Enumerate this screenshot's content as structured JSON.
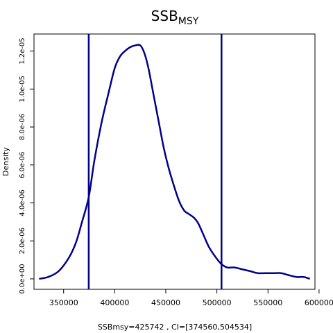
{
  "chart_data": {
    "type": "line",
    "title_main": "SSB",
    "title_sub": "MSY",
    "xlabel": "SSBmsy=425742 , CI=[374560,504534]",
    "ylabel": "Density",
    "xlim": [
      321000,
      596000
    ],
    "ylim": [
      -5.5e-07,
      1.29e-05
    ],
    "x_ticks": [
      350000,
      400000,
      450000,
      500000,
      550000,
      600000
    ],
    "x_tick_labels": [
      "350000",
      "400000",
      "450000",
      "500000",
      "550000",
      "600000"
    ],
    "y_ticks": [
      0,
      2e-06,
      4e-06,
      6e-06,
      8e-06,
      1e-05,
      1.2e-05
    ],
    "y_tick_labels": [
      "0.0e+00",
      "2.0e-06",
      "4.0e-06",
      "6.0e-06",
      "8.0e-06",
      "1.0e-05",
      "1.2e-05"
    ],
    "ci_lines": [
      374560,
      504534
    ],
    "line_color": "#00008b",
    "series": [
      {
        "x": [
          326000,
          335000,
          345000,
          355000,
          362000,
          368000,
          374560,
          380000,
          387000,
          394000,
          400000,
          405000,
          410000,
          415000,
          420000,
          425000,
          429000,
          433000,
          438000,
          443000,
          448000,
          453000,
          458000,
          463000,
          468000,
          473000,
          478000,
          482000,
          487000,
          492000,
          498000,
          504000,
          510000,
          517000,
          525000,
          533000,
          540000,
          548000,
          556000,
          563000,
          570000,
          578000,
          585000,
          591000
        ],
        "y": [
          0.0,
          1e-07,
          4e-07,
          1.1e-06,
          1.9e-06,
          3e-06,
          4.3e-06,
          6.2e-06,
          8.2e-06,
          9.8e-06,
          1.11e-05,
          1.17e-05,
          1.2e-05,
          1.22e-05,
          1.23e-05,
          1.23e-05,
          1.19e-05,
          1.11e-05,
          9.7e-06,
          8.3e-06,
          6.9e-06,
          5.8e-06,
          4.9e-06,
          4.1e-06,
          3.6e-06,
          3.4e-06,
          3.2e-06,
          2.9e-06,
          2.3e-06,
          1.7e-06,
          1.2e-06,
          8e-07,
          6e-07,
          6e-07,
          5e-07,
          4e-07,
          3e-07,
          3e-07,
          3e-07,
          3e-07,
          2e-07,
          1e-07,
          1e-07,
          0.0
        ]
      }
    ]
  }
}
